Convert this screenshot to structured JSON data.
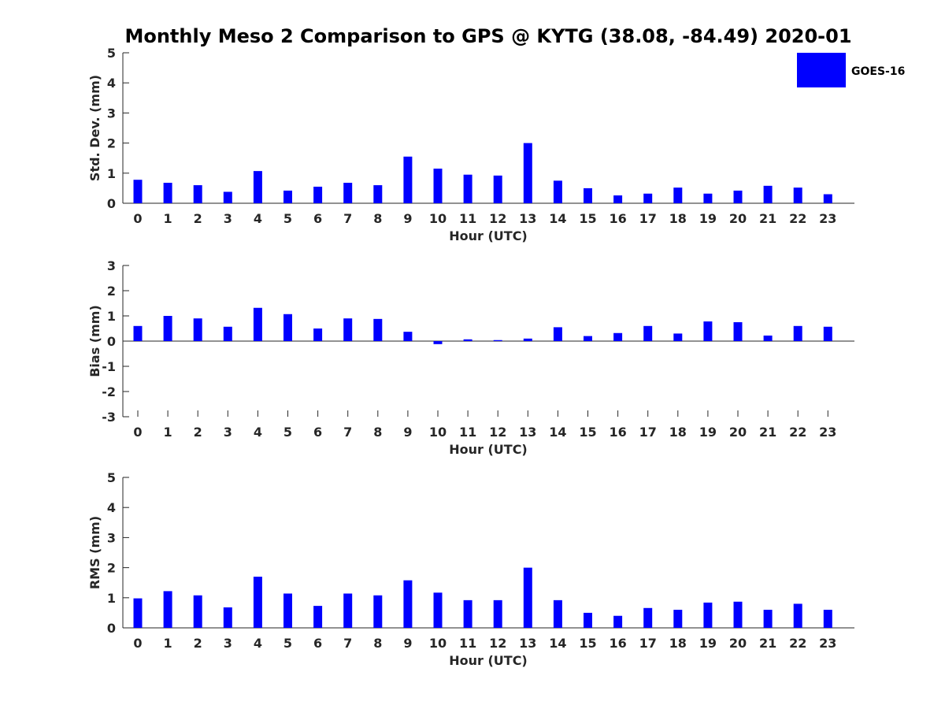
{
  "title": "Monthly Meso 2 Comparison to GPS @ KYTG (38.08, -84.49) 2020-01",
  "legend": {
    "label": "GOES-16",
    "color": "#0000ff",
    "placement": "top-right"
  },
  "colors": {
    "bar": "#0000ff",
    "axis": "#262626",
    "text": "#262626"
  },
  "chart_data": [
    {
      "type": "bar",
      "xlabel": "Hour (UTC)",
      "ylabel": "Std. Dev. (mm)",
      "ylim": [
        0,
        5
      ],
      "yticks": [
        0,
        1,
        2,
        3,
        4,
        5
      ],
      "grid": false,
      "categories": [
        "0",
        "1",
        "2",
        "3",
        "4",
        "5",
        "6",
        "7",
        "8",
        "9",
        "10",
        "11",
        "12",
        "13",
        "14",
        "15",
        "16",
        "17",
        "18",
        "19",
        "20",
        "21",
        "22",
        "23"
      ],
      "series": [
        {
          "name": "GOES-16",
          "values": [
            0.78,
            0.68,
            0.6,
            0.38,
            1.07,
            0.42,
            0.55,
            0.68,
            0.6,
            1.55,
            1.15,
            0.95,
            0.92,
            2.0,
            0.75,
            0.5,
            0.26,
            0.32,
            0.52,
            0.32,
            0.42,
            0.58,
            0.52,
            0.3
          ]
        }
      ]
    },
    {
      "type": "bar",
      "xlabel": "Hour (UTC)",
      "ylabel": "Bias (mm)",
      "ylim": [
        -3,
        3
      ],
      "yticks": [
        -3,
        -2,
        -1,
        0,
        1,
        2,
        3
      ],
      "grid": false,
      "categories": [
        "0",
        "1",
        "2",
        "3",
        "4",
        "5",
        "6",
        "7",
        "8",
        "9",
        "10",
        "11",
        "12",
        "13",
        "14",
        "15",
        "16",
        "17",
        "18",
        "19",
        "20",
        "21",
        "22",
        "23"
      ],
      "series": [
        {
          "name": "GOES-16",
          "values": [
            0.6,
            1.0,
            0.9,
            0.57,
            1.32,
            1.07,
            0.5,
            0.9,
            0.88,
            0.37,
            -0.12,
            0.07,
            0.04,
            0.1,
            0.55,
            0.2,
            0.32,
            0.6,
            0.3,
            0.78,
            0.75,
            0.22,
            0.6,
            0.57
          ]
        }
      ]
    },
    {
      "type": "bar",
      "xlabel": "Hour (UTC)",
      "ylabel": "RMS (mm)",
      "ylim": [
        0,
        5
      ],
      "yticks": [
        0,
        1,
        2,
        3,
        4,
        5
      ],
      "grid": false,
      "categories": [
        "0",
        "1",
        "2",
        "3",
        "4",
        "5",
        "6",
        "7",
        "8",
        "9",
        "10",
        "11",
        "12",
        "13",
        "14",
        "15",
        "16",
        "17",
        "18",
        "19",
        "20",
        "21",
        "22",
        "23"
      ],
      "series": [
        {
          "name": "GOES-16",
          "values": [
            0.98,
            1.22,
            1.08,
            0.68,
            1.7,
            1.14,
            0.73,
            1.14,
            1.08,
            1.58,
            1.17,
            0.92,
            0.92,
            2.0,
            0.92,
            0.5,
            0.4,
            0.66,
            0.6,
            0.84,
            0.87,
            0.6,
            0.8,
            0.6
          ]
        }
      ]
    }
  ]
}
